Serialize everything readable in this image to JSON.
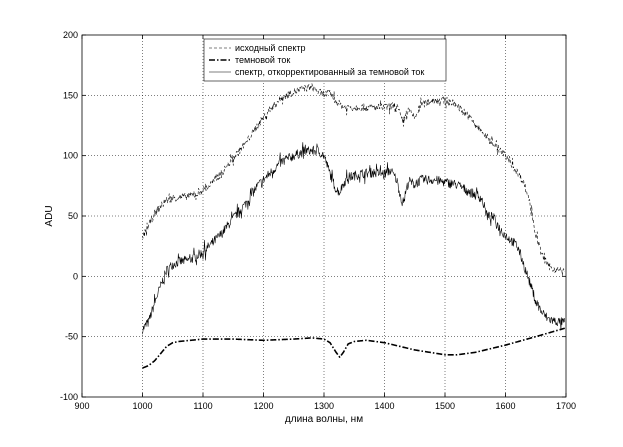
{
  "chart_data": {
    "type": "line",
    "title": "",
    "xlabel": "длина волны, нм",
    "ylabel": "ADU",
    "xlim": [
      900,
      1700
    ],
    "ylim": [
      -100,
      200
    ],
    "xticks": [
      "900",
      "1000",
      "1100",
      "1200",
      "1300",
      "1400",
      "1500",
      "1600",
      "1700"
    ],
    "yticks": [
      "-100",
      "-50",
      "0",
      "50",
      "100",
      "150",
      "200"
    ],
    "grid": true,
    "legend_position": "top-center",
    "series": [
      {
        "name": "исходный спектр",
        "style": "dashed",
        "noise": 3,
        "points": [
          [
            1000,
            32
          ],
          [
            1010,
            42
          ],
          [
            1020,
            52
          ],
          [
            1030,
            58
          ],
          [
            1040,
            63
          ],
          [
            1050,
            65
          ],
          [
            1070,
            66
          ],
          [
            1090,
            68
          ],
          [
            1110,
            75
          ],
          [
            1130,
            85
          ],
          [
            1150,
            98
          ],
          [
            1170,
            110
          ],
          [
            1190,
            125
          ],
          [
            1210,
            138
          ],
          [
            1230,
            148
          ],
          [
            1250,
            153
          ],
          [
            1270,
            156
          ],
          [
            1280,
            157
          ],
          [
            1290,
            153
          ],
          [
            1300,
            151
          ],
          [
            1310,
            152
          ],
          [
            1320,
            145
          ],
          [
            1330,
            141
          ],
          [
            1340,
            140
          ],
          [
            1360,
            140
          ],
          [
            1380,
            140
          ],
          [
            1400,
            140
          ],
          [
            1420,
            142
          ],
          [
            1430,
            128
          ],
          [
            1440,
            138
          ],
          [
            1450,
            131
          ],
          [
            1460,
            142
          ],
          [
            1480,
            146
          ],
          [
            1500,
            146
          ],
          [
            1520,
            142
          ],
          [
            1540,
            132
          ],
          [
            1560,
            120
          ],
          [
            1580,
            110
          ],
          [
            1600,
            100
          ],
          [
            1610,
            93
          ],
          [
            1620,
            86
          ],
          [
            1630,
            78
          ],
          [
            1640,
            62
          ],
          [
            1650,
            35
          ],
          [
            1660,
            18
          ],
          [
            1670,
            9
          ],
          [
            1680,
            6
          ],
          [
            1690,
            5
          ],
          [
            1698,
            4
          ]
        ]
      },
      {
        "name": "темновой ток",
        "style": "dashdot",
        "noise": 0,
        "points": [
          [
            1000,
            -76
          ],
          [
            1010,
            -74
          ],
          [
            1020,
            -70
          ],
          [
            1030,
            -64
          ],
          [
            1040,
            -58
          ],
          [
            1050,
            -55
          ],
          [
            1060,
            -54
          ],
          [
            1080,
            -53
          ],
          [
            1100,
            -52
          ],
          [
            1150,
            -52
          ],
          [
            1200,
            -53
          ],
          [
            1250,
            -52
          ],
          [
            1280,
            -51
          ],
          [
            1300,
            -52
          ],
          [
            1310,
            -55
          ],
          [
            1320,
            -63
          ],
          [
            1326,
            -67
          ],
          [
            1332,
            -63
          ],
          [
            1340,
            -56
          ],
          [
            1350,
            -54
          ],
          [
            1370,
            -53
          ],
          [
            1400,
            -55
          ],
          [
            1450,
            -61
          ],
          [
            1500,
            -65
          ],
          [
            1520,
            -65
          ],
          [
            1550,
            -63
          ],
          [
            1600,
            -57
          ],
          [
            1650,
            -50
          ],
          [
            1698,
            -43
          ]
        ]
      },
      {
        "name": "спектр, откорректированный за темновой ток",
        "style": "solid",
        "noise": 4,
        "points": [
          [
            1000,
            -44
          ],
          [
            1010,
            -38
          ],
          [
            1020,
            -22
          ],
          [
            1030,
            -8
          ],
          [
            1040,
            5
          ],
          [
            1050,
            10
          ],
          [
            1060,
            12
          ],
          [
            1080,
            14
          ],
          [
            1100,
            20
          ],
          [
            1130,
            35
          ],
          [
            1150,
            48
          ],
          [
            1170,
            60
          ],
          [
            1190,
            75
          ],
          [
            1210,
            85
          ],
          [
            1230,
            95
          ],
          [
            1250,
            100
          ],
          [
            1270,
            104
          ],
          [
            1290,
            104
          ],
          [
            1300,
            100
          ],
          [
            1310,
            85
          ],
          [
            1320,
            72
          ],
          [
            1326,
            70
          ],
          [
            1332,
            77
          ],
          [
            1340,
            82
          ],
          [
            1360,
            85
          ],
          [
            1380,
            86
          ],
          [
            1400,
            85
          ],
          [
            1410,
            88
          ],
          [
            1420,
            80
          ],
          [
            1430,
            60
          ],
          [
            1440,
            79
          ],
          [
            1450,
            76
          ],
          [
            1460,
            80
          ],
          [
            1480,
            80
          ],
          [
            1500,
            78
          ],
          [
            1520,
            76
          ],
          [
            1540,
            70
          ],
          [
            1560,
            65
          ],
          [
            1570,
            50
          ],
          [
            1580,
            49
          ],
          [
            1590,
            40
          ],
          [
            1600,
            34
          ],
          [
            1620,
            25
          ],
          [
            1630,
            10
          ],
          [
            1640,
            -5
          ],
          [
            1650,
            -20
          ],
          [
            1660,
            -30
          ],
          [
            1670,
            -35
          ],
          [
            1680,
            -37
          ],
          [
            1690,
            -38
          ],
          [
            1698,
            -38
          ]
        ]
      }
    ]
  }
}
